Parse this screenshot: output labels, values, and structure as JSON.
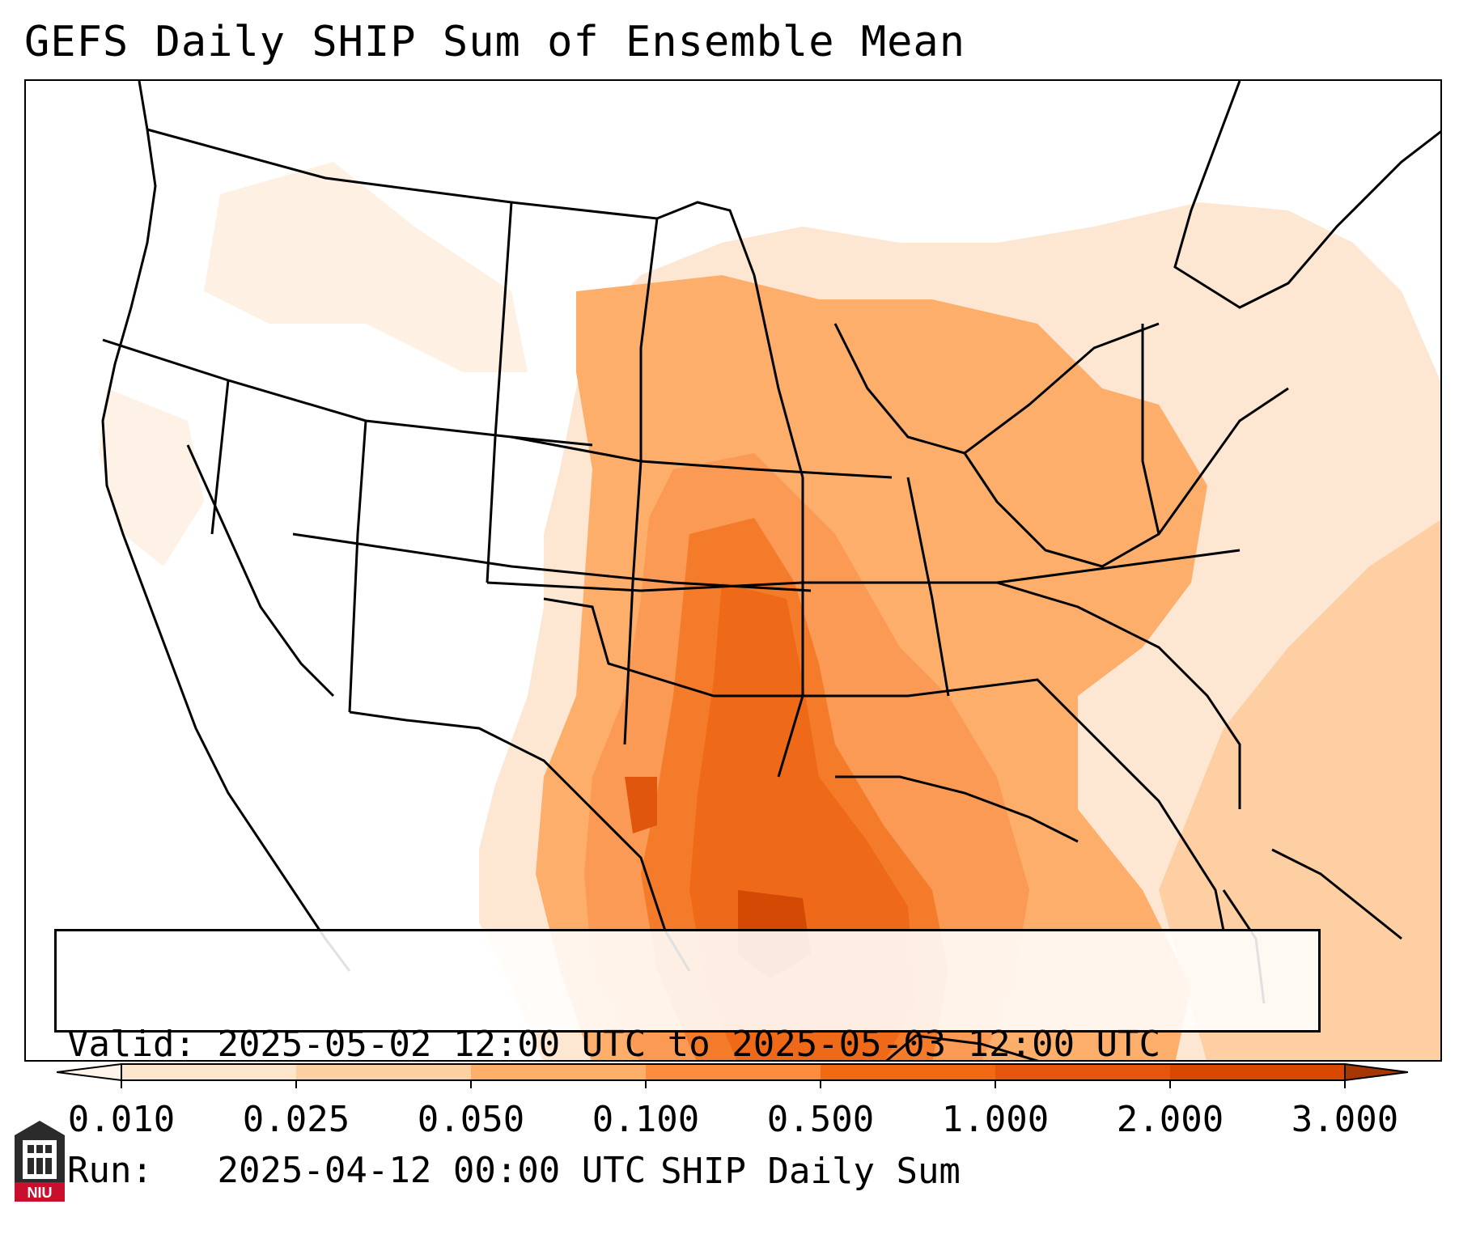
{
  "title": "GEFS Daily SHIP Sum of Ensemble Mean",
  "info": {
    "valid_label": "Valid:",
    "valid_value": "2025-05-02 12:00 UTC to 2025-05-03 12:00 UTC",
    "run_label": "Run:",
    "run_value": "2025-04-12 00:00 UTC"
  },
  "colorbar": {
    "label": "SHIP Daily Sum",
    "ticks": [
      "0.010",
      "0.025",
      "0.050",
      "0.100",
      "0.500",
      "1.000",
      "2.000",
      "3.000"
    ],
    "colors": [
      "#fee6ce",
      "#fdd0a2",
      "#fdae6b",
      "#fd8d3c",
      "#f16913",
      "#e6550d",
      "#d94801",
      "#a63603"
    ],
    "under_color": "#fff5eb",
    "over_color": "#8c2d04"
  },
  "logo": {
    "text": "NIU",
    "icon": "niu-building-icon"
  }
}
